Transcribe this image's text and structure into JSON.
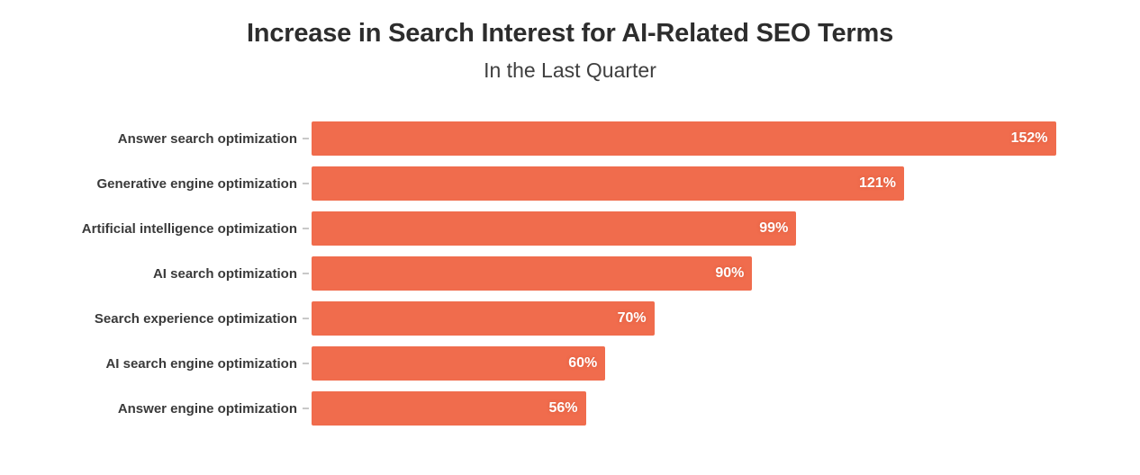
{
  "header": {
    "title": "Increase in Search Interest for AI-Related SEO Terms",
    "subtitle": "In the Last Quarter"
  },
  "chart_data": {
    "type": "bar",
    "orientation": "horizontal",
    "title": "Increase in Search Interest for AI-Related SEO Terms",
    "subtitle": "In the Last Quarter",
    "categories": [
      "Answer search optimization",
      "Generative engine optimization",
      "Artificial intelligence optimization",
      "AI search optimization",
      "Search experience optimization",
      "AI search engine optimization",
      "Answer engine optimization"
    ],
    "values": [
      152,
      121,
      99,
      90,
      70,
      60,
      56
    ],
    "unit": "%",
    "value_labels": [
      "152%",
      "121%",
      "99%",
      "90%",
      "70%",
      "60%",
      "56%"
    ],
    "xlabel": "",
    "ylabel": "",
    "xlim": [
      0,
      160
    ],
    "grid": false,
    "legend": false,
    "bar_color": "#F06C4D",
    "value_label_color": "#ffffff"
  },
  "colors": {
    "background": "#ffffff",
    "bar": "#F06C4D",
    "title_text": "#2d2d2d",
    "category_text": "#3a3a3a",
    "tick": "#c8c8c8"
  }
}
